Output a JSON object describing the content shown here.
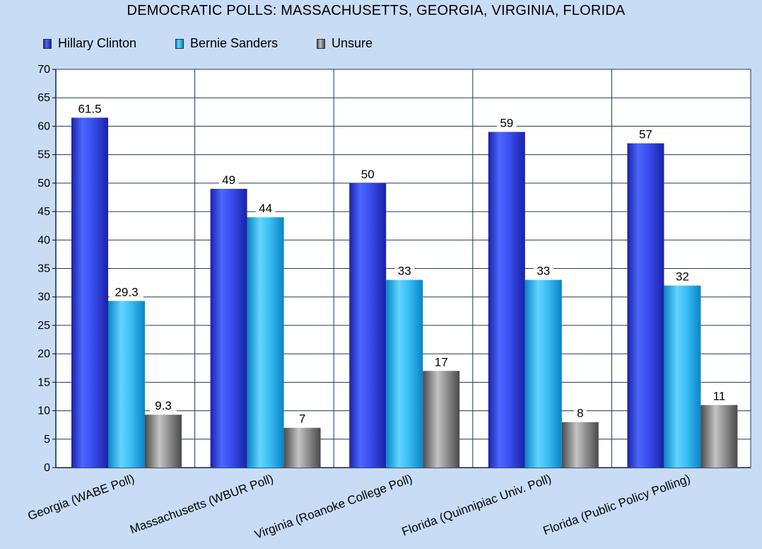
{
  "chart_data": {
    "type": "bar",
    "title": "DEMOCRATIC POLLS: MASSACHUSETTS, GEORGIA, VIRGINIA, FLORIDA",
    "xlabel": "",
    "ylabel": "",
    "categories": [
      "Georgia (WABE Poll)",
      "Massachusetts (WBUR Poll)",
      "Virginia (Roanoke College Poll)",
      "Florida (Quinnipiac Univ. Poll)",
      "Florida (Public Policy Polling)"
    ],
    "series": [
      {
        "name": "Hillary Clinton",
        "values": [
          61.5,
          49,
          50,
          59,
          57
        ],
        "color": "#2a3ed8"
      },
      {
        "name": "Bernie Sanders",
        "values": [
          29.3,
          44,
          33,
          33,
          32
        ],
        "color": "#2ab4ee"
      },
      {
        "name": "Unsure",
        "values": [
          9.3,
          7,
          17,
          8,
          11
        ],
        "color": "#7c7c7c"
      }
    ],
    "ylim": [
      0,
      70
    ],
    "yticks": [
      0,
      5,
      10,
      15,
      20,
      25,
      30,
      35,
      40,
      45,
      50,
      55,
      60,
      65,
      70
    ],
    "grid": true,
    "legend_position": "top-left",
    "plot_background": "#ffffff",
    "page_background": "#c9dcf6",
    "grid_color": "#1a3a5a"
  }
}
